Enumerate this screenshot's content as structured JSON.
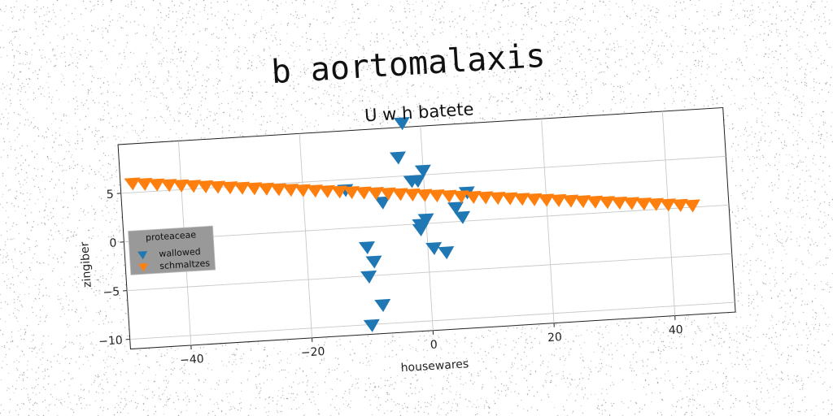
{
  "chart_data": {
    "type": "scatter",
    "suptitle": "b aortomalaxis",
    "title": "U w h batete",
    "xlabel": "housewares",
    "ylabel": "zingiber",
    "xlim": [
      -50,
      50
    ],
    "ylim": [
      -11,
      10
    ],
    "xticks": [
      -40,
      -20,
      0,
      20,
      40
    ],
    "xtick_labels": [
      "−40",
      "−20",
      "0",
      "20",
      "40"
    ],
    "yticks": [
      -10,
      -5,
      0,
      5
    ],
    "ytick_labels": [
      "−10",
      "−5",
      "0",
      "5"
    ],
    "grid": true,
    "marker": "triangle-down",
    "legend": {
      "title": "proteaceae",
      "position": "center-left"
    },
    "series": [
      {
        "name": "wallowed",
        "color": "#1f77b4",
        "x": [
          -3,
          -4,
          0,
          -1,
          -2,
          -13,
          -8,
          -7,
          7,
          5,
          6,
          0,
          -1,
          -1,
          1,
          3,
          -10,
          -9,
          -10,
          -8,
          -10
        ],
        "y": [
          10.5,
          7,
          5.5,
          4.5,
          4.5,
          4,
          3.5,
          2.5,
          3,
          1.5,
          0.5,
          0.5,
          0,
          -0.5,
          -2.5,
          -3,
          -2,
          -3.5,
          -5,
          -8,
          -10
        ]
      },
      {
        "name": "schmaltzes",
        "color": "#ff7f0e",
        "x": [
          -48,
          -46,
          -44,
          -42,
          -40,
          -38,
          -36,
          -34,
          -32,
          -30,
          -28,
          -26,
          -24,
          -22,
          -20,
          -18,
          -16,
          -14,
          -12,
          -10,
          -8,
          -6,
          -4,
          -2,
          0,
          2,
          4,
          6,
          8,
          10,
          12,
          14,
          16,
          18,
          20,
          22,
          24,
          26,
          28,
          30,
          32,
          34,
          36,
          38,
          40,
          42,
          44
        ],
        "y": [
          6.0,
          5.88,
          5.75,
          5.63,
          5.5,
          5.38,
          5.25,
          5.13,
          5.0,
          4.88,
          4.75,
          4.63,
          4.5,
          4.38,
          4.25,
          4.13,
          4.0,
          3.88,
          3.75,
          3.63,
          3.5,
          3.38,
          3.25,
          3.13,
          3.0,
          2.88,
          2.75,
          2.63,
          2.5,
          2.38,
          2.25,
          2.13,
          2.0,
          1.88,
          1.75,
          1.63,
          1.5,
          1.38,
          1.25,
          1.13,
          1.0,
          0.88,
          0.75,
          0.63,
          0.5,
          0.38,
          0.25
        ]
      }
    ]
  }
}
